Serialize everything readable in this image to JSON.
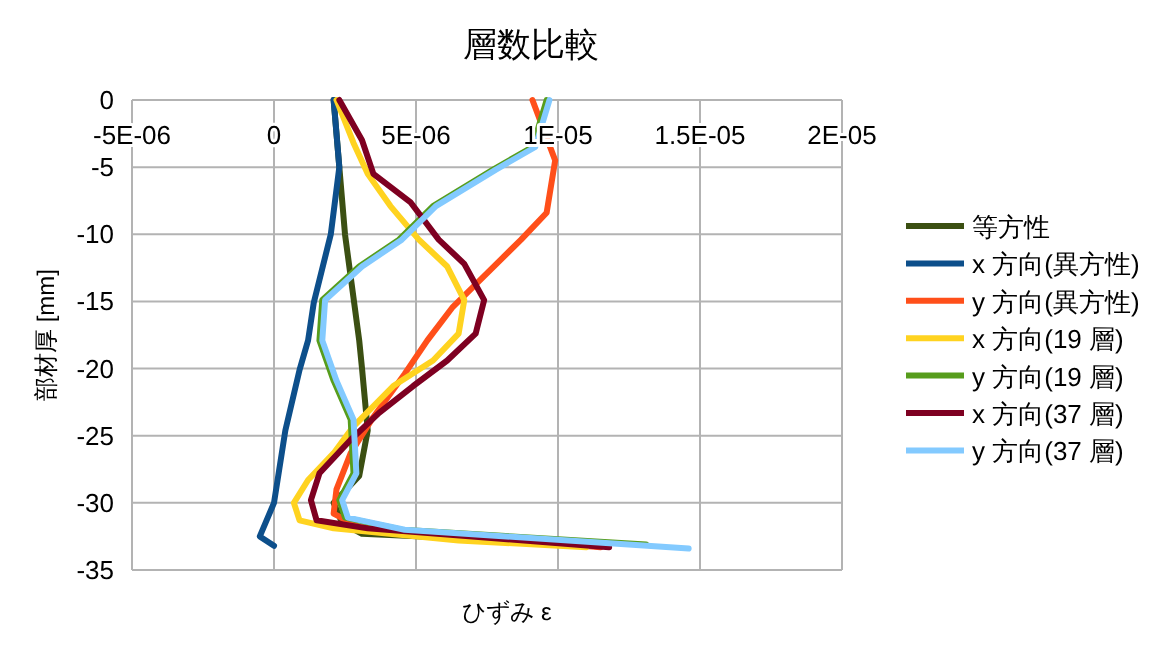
{
  "chart_data": {
    "type": "line",
    "title": "層数比較",
    "xlabel": "ひずみ ε",
    "ylabel": "部材厚 [mm]",
    "xlim": [
      -5e-06,
      2e-05
    ],
    "ylim": [
      -35,
      0
    ],
    "xticks": [
      {
        "value": -5e-06,
        "label": "-5E-06"
      },
      0,
      {
        "value": 5e-06,
        "label": "5E-06"
      },
      {
        "value": 1e-05,
        "label": "1E-05"
      },
      {
        "value": 1.5e-05,
        "label": "1.5E-05"
      },
      {
        "value": 2e-05,
        "label": "2E-05"
      }
    ],
    "yticks": [
      0,
      -5,
      -10,
      -15,
      -20,
      -25,
      -30,
      -35
    ],
    "grid": true,
    "legend": "right",
    "marker": "none",
    "line_style": "solid",
    "series": [
      {
        "name": "等方性",
        "color": "#3b4f12",
        "x": [
          2.1e-06,
          2.5e-06,
          3e-06,
          3.1e-06,
          3.3e-06,
          3e-06,
          2.1e-06,
          2.4e-06,
          3.1e-06,
          1.15e-05
        ],
        "values": [
          0,
          -10,
          -17.9,
          -20,
          -24.6,
          -28,
          -30,
          -31.5,
          -32.3,
          -33.1
        ]
      },
      {
        "name": "x 方向(異方性)",
        "color": "#0d4f8b",
        "x": [
          2.1e-06,
          2.3e-06,
          2e-06,
          1.4e-06,
          1.2e-06,
          9e-07,
          4e-07,
          0.0,
          -5e-07,
          0.0
        ],
        "values": [
          0,
          -5,
          -10,
          -15.1,
          -17.9,
          -20.1,
          -24.6,
          -30,
          -32.5,
          -33.2
        ]
      },
      {
        "name": "y 方向(異方性)",
        "color": "#ff4f1a",
        "x": [
          9.1e-06,
          9.9e-06,
          9.6e-06,
          8.7e-06,
          6.3e-06,
          5.4e-06,
          4.6e-06,
          3.5e-06,
          2.7e-06,
          2.2e-06,
          2.1e-06,
          3e-06,
          1.15e-05
        ],
        "values": [
          0,
          -4.5,
          -8.4,
          -10.4,
          -15.4,
          -17.9,
          -20.4,
          -23.6,
          -26.3,
          -29,
          -30.8,
          -31.8,
          -33.3
        ]
      },
      {
        "name": "x 方向(19 層)",
        "color": "#ffd320",
        "x": [
          2.2e-06,
          2.8e-06,
          3.3e-06,
          4.1e-06,
          5.1e-06,
          6.1e-06,
          6.7e-06,
          6.5e-06,
          5.6e-06,
          4.2e-06,
          2.8e-06,
          2.1e-06,
          1.2e-06,
          7e-07,
          9e-07,
          2.1e-06,
          6.5e-06,
          1.1e-05
        ],
        "values": [
          0,
          -3.2,
          -5.5,
          -7.9,
          -10.4,
          -12.4,
          -14.9,
          -17.4,
          -19.4,
          -21.3,
          -24.3,
          -26.3,
          -28.3,
          -30,
          -31.3,
          -31.9,
          -32.8,
          -33.3
        ]
      },
      {
        "name": "y 方向(19 層)",
        "color": "#579d1c",
        "x": [
          9.6e-06,
          9.1e-06,
          7.7e-06,
          5.6e-06,
          4.4e-06,
          3e-06,
          1.7e-06,
          1.6e-06,
          2.1e-06,
          2.7e-06,
          2.8e-06,
          2.3e-06,
          2.5e-06,
          4.5e-06,
          1.31e-05
        ],
        "values": [
          0,
          -3.5,
          -5.2,
          -7.9,
          -10.4,
          -12.4,
          -14.9,
          -17.9,
          -20.9,
          -23.8,
          -27.8,
          -29.8,
          -31.1,
          -32,
          -33.1
        ]
      },
      {
        "name": "x 方向(37 層)",
        "color": "#7e0021",
        "x": [
          2.3e-06,
          3.1e-06,
          3.5e-06,
          4.8e-06,
          5.8e-06,
          6.7e-06,
          7.4e-06,
          7.1e-06,
          6.1e-06,
          4.9e-06,
          3.7e-06,
          2.7e-06,
          1.6e-06,
          1.3e-06,
          1.5e-06,
          3.3e-06,
          1.18e-05
        ],
        "values": [
          0,
          -3,
          -5.5,
          -7.6,
          -10.4,
          -12.2,
          -14.9,
          -17.4,
          -19.4,
          -21.3,
          -23.3,
          -25.3,
          -27.8,
          -29.8,
          -31.3,
          -31.9,
          -33.3
        ]
      },
      {
        "name": "y 方向(37 層)",
        "color": "#83caff",
        "x": [
          9.7e-06,
          9.2e-06,
          7.8e-06,
          5.7e-06,
          4.5e-06,
          3.1e-06,
          1.8e-06,
          1.7e-06,
          2.2e-06,
          2.8e-06,
          2.9e-06,
          2.4e-06,
          2.6e-06,
          4.6e-06,
          1.46e-05
        ],
        "values": [
          0,
          -3.5,
          -5.2,
          -7.9,
          -10.4,
          -12.4,
          -14.9,
          -17.9,
          -20.9,
          -23.8,
          -27.8,
          -29.8,
          -31.1,
          -32,
          -33.4
        ]
      }
    ]
  }
}
